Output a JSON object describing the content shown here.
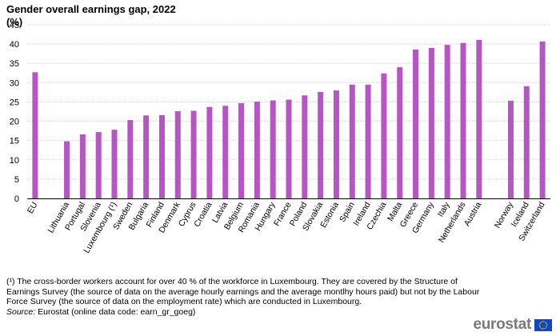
{
  "title_line1": "Gender overall earnings gap, 2022",
  "title_line2": "(%)",
  "chart_data": {
    "type": "bar",
    "title": "Gender overall earnings gap, 2022",
    "ylabel": "(%)",
    "ylim": [
      0,
      45
    ],
    "yticks": [
      0,
      5,
      10,
      15,
      20,
      25,
      30,
      35,
      40,
      45
    ],
    "grid": true,
    "bar_color": "#b656c4",
    "categories": [
      "EU",
      "",
      "Lithuania",
      "Portugal",
      "Slovenia",
      "Luxembourg (¹)",
      "Sweden",
      "Bulgaria",
      "Finland",
      "Denmark",
      "Cyprus",
      "Croatia",
      "Latvia",
      "Belgium",
      "Romania",
      "Hungary",
      "France",
      "Poland",
      "Slovakia",
      "Estonia",
      "Spain",
      "Ireland",
      "Czechia",
      "Malta",
      "Greece",
      "Germany",
      "Italy",
      "Netherlands",
      "Austria",
      "",
      "Norway",
      "Iceland",
      "Switzerland"
    ],
    "values": [
      32.7,
      null,
      14.8,
      16.6,
      17.2,
      17.8,
      20.3,
      21.5,
      21.6,
      22.6,
      22.7,
      23.7,
      24.0,
      24.7,
      25.1,
      25.4,
      25.6,
      26.7,
      27.6,
      28.0,
      29.5,
      29.5,
      32.4,
      34.0,
      38.6,
      39.0,
      39.8,
      40.3,
      41.1,
      null,
      25.3,
      29.1,
      40.7
    ]
  },
  "footnote": {
    "note": "(¹) The cross-border workers account for over 40 % of the workforce in Luxembourg. They are covered by the Structure of Earnings Survey (the source of data on the average hourly earnings and the average montlhy hours paid) but not by the Labour Force Survey (the source of data on the employment rate) which are conducted in Luxembourg.",
    "source_label": "Source:",
    "source_text": "Eurostat (online data code: earn_gr_goeg)"
  },
  "logo": {
    "text": "eurostat",
    "flag_color": "#0e47cb",
    "star_color": "#ffde00"
  }
}
